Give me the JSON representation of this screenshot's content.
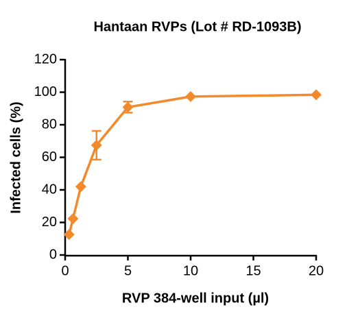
{
  "chart_data": {
    "type": "line",
    "title": "Hantaan RVPs (Lot # RD-1093B)",
    "x_label": "RVP 384-well input (µl)",
    "y_label": "Infected cells (%)",
    "x": [
      0.3125,
      0.625,
      1.25,
      2.5,
      5,
      10,
      20
    ],
    "series": [
      {
        "name": "Hantaan RVPs",
        "color": "#f28a2c",
        "values": [
          12.6,
          22.3,
          42,
          67.4,
          90.8,
          97.3,
          98.4
        ],
        "errors": [
          null,
          null,
          null,
          8.8,
          3.4,
          null,
          null
        ]
      }
    ],
    "xlim": [
      0,
      20
    ],
    "xticks": [
      0,
      5,
      10,
      15,
      20
    ],
    "ylim": [
      0,
      120
    ],
    "yticks": [
      0,
      20,
      40,
      60,
      80,
      100,
      120
    ],
    "grid": false
  }
}
